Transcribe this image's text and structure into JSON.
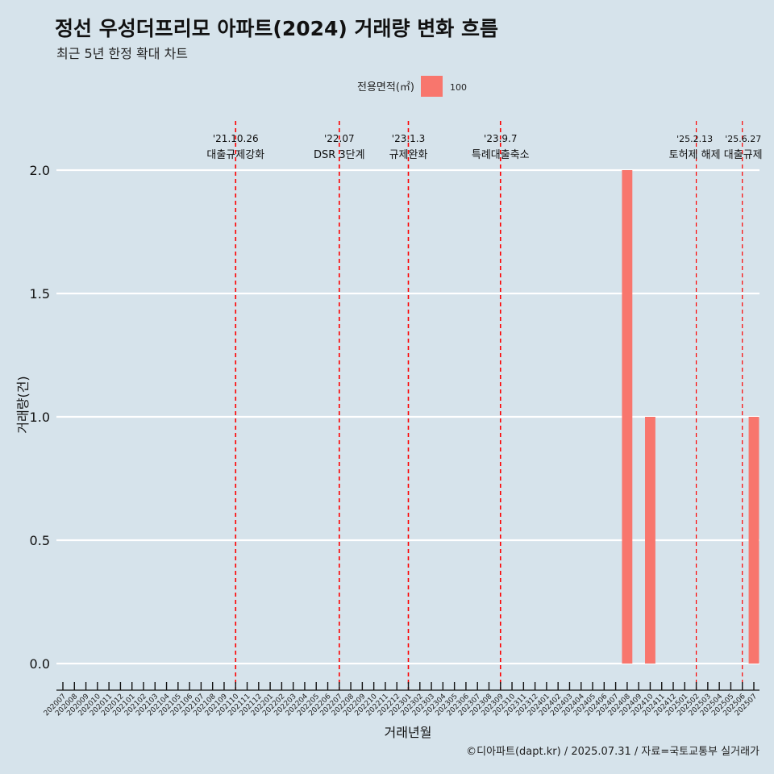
{
  "title": "정선 우성더프리모 아파트(2024) 거래량 변화 흐름",
  "subtitle": "최근 5년 한정 확대 차트",
  "caption": "©디아파트(dapt.kr) / 2025.07.31 / 자료=국토교통부 실거래가",
  "chart_data": {
    "type": "bar",
    "xlabel": "거래년월",
    "ylabel": "거래량(건)",
    "ylim": [
      0,
      2
    ],
    "yticks": [
      0.0,
      0.5,
      1.0,
      1.5,
      2.0
    ],
    "ytick_labels": [
      "0.0",
      "0.5",
      "1.0",
      "1.5",
      "2.0"
    ],
    "grid": true,
    "legend": {
      "title": "전용면적(㎡)",
      "position": "top",
      "entries": [
        "100"
      ]
    },
    "categories": [
      "202007",
      "202008",
      "202009",
      "202010",
      "202011",
      "202012",
      "202101",
      "202102",
      "202103",
      "202104",
      "202105",
      "202106",
      "202107",
      "202108",
      "202109",
      "202110",
      "202111",
      "202112",
      "202201",
      "202202",
      "202203",
      "202204",
      "202205",
      "202206",
      "202207",
      "202208",
      "202209",
      "202210",
      "202211",
      "202212",
      "202301",
      "202302",
      "202303",
      "202304",
      "202305",
      "202306",
      "202307",
      "202308",
      "202309",
      "202310",
      "202311",
      "202312",
      "202401",
      "202402",
      "202403",
      "202404",
      "202405",
      "202406",
      "202407",
      "202408",
      "202409",
      "202410",
      "202411",
      "202412",
      "202501",
      "202502",
      "202503",
      "202504",
      "202505",
      "202506",
      "202507"
    ],
    "series": [
      {
        "name": "100",
        "color": "#f8766d",
        "values": [
          0,
          0,
          0,
          0,
          0,
          0,
          0,
          0,
          0,
          0,
          0,
          0,
          0,
          0,
          0,
          0,
          0,
          0,
          0,
          0,
          0,
          0,
          0,
          0,
          0,
          0,
          0,
          0,
          0,
          0,
          0,
          0,
          0,
          0,
          0,
          0,
          0,
          0,
          0,
          0,
          0,
          0,
          0,
          0,
          0,
          0,
          0,
          0,
          0,
          2,
          0,
          1,
          0,
          0,
          0,
          0,
          0,
          0,
          0,
          0,
          1
        ]
      }
    ],
    "annotations": [
      {
        "date": "'21.10.26",
        "label": "대출규제강화",
        "x": "202110"
      },
      {
        "date": "'22.07",
        "label": "DSR 3단계",
        "x": "202207"
      },
      {
        "date": "'23.1.3",
        "label": "규제완화",
        "x": "202301"
      },
      {
        "date": "'23.9.7",
        "label": "특례대출축소",
        "x": "202309"
      },
      {
        "date": "'25.2.13",
        "label": "토허제 해제",
        "x": "202502"
      },
      {
        "date": "'25.6.27",
        "label": "대출규제",
        "x": "202506"
      }
    ],
    "annotation_color": "#ff0000"
  }
}
